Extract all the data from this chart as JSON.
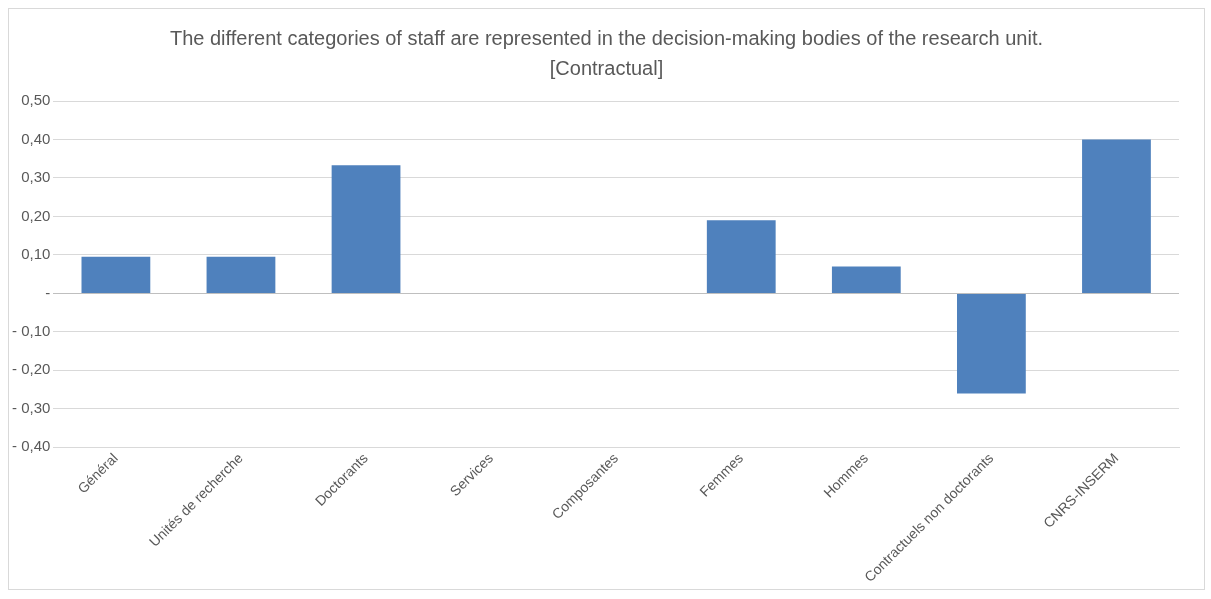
{
  "chart_data": {
    "type": "bar",
    "title": "The different categories of staff are represented in the decision-making bodies of the research unit. [Contractual]",
    "categories": [
      "Général",
      "Unités de recherche",
      "Doctorants",
      "Services",
      "Composantes",
      "Femmes",
      "Hommes",
      "Contractuels non doctorants",
      "CNRS-INSERM"
    ],
    "values": [
      0.095,
      0.095,
      0.333,
      0,
      0,
      0.19,
      0.07,
      -0.26,
      0.4
    ],
    "color": "#4f81bd",
    "ylim": [
      -0.4,
      0.5
    ],
    "yticks": [
      {
        "value": -0.4,
        "label": "- 0,40"
      },
      {
        "value": -0.3,
        "label": "- 0,30"
      },
      {
        "value": -0.2,
        "label": "- 0,20"
      },
      {
        "value": -0.1,
        "label": "- 0,10"
      },
      {
        "value": 0,
        "label": "-"
      },
      {
        "value": 0.1,
        "label": "0,10"
      },
      {
        "value": 0.2,
        "label": "0,20"
      },
      {
        "value": 0.3,
        "label": "0,30"
      },
      {
        "value": 0.4,
        "label": "0,40"
      },
      {
        "value": 0.5,
        "label": "0,50"
      }
    ],
    "grid": "y",
    "legend": false
  }
}
